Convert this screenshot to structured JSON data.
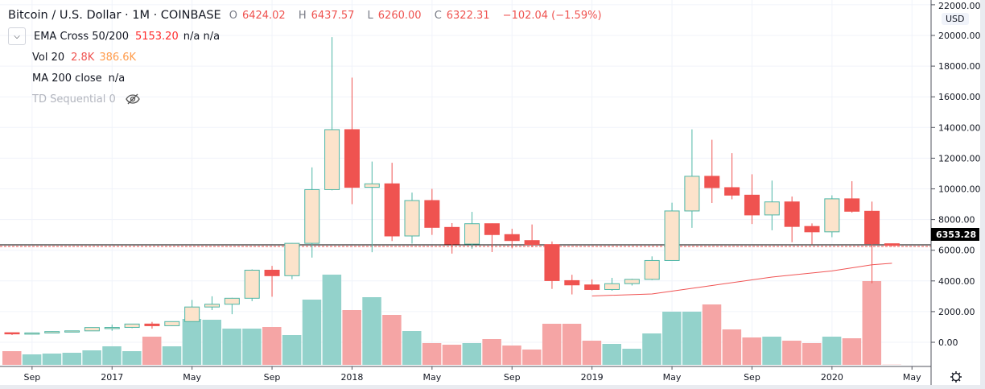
{
  "header": {
    "symbol": "Bitcoin / U.S. Dollar · 1M · COINBASE",
    "ohlc": {
      "o_label": "O",
      "o": "6424.02",
      "h_label": "H",
      "h": "6437.57",
      "l_label": "L",
      "l": "6260.00",
      "c_label": "C",
      "c": "6322.31",
      "change": "−102.04 (−1.59%)"
    }
  },
  "indicators": [
    {
      "name": "EMA Cross 50/200",
      "values": [
        "5153.20",
        "n/a n/a"
      ]
    },
    {
      "name": "Vol 20",
      "values": [
        "2.8K",
        "386.6K"
      ]
    },
    {
      "name": "MA 200 close",
      "values": [
        "n/a"
      ]
    },
    {
      "name": "TD Sequential 0",
      "hidden_icon": "eye-off-icon"
    }
  ],
  "price_axis": {
    "currency": "USD",
    "current_price": "6353.28"
  },
  "colors": {
    "up_fill": "#fce3cb",
    "up_border": "#4db6a6",
    "down": "#ef5350",
    "vol_up": "#93d2cb",
    "vol_down": "#f5a5a5",
    "ema": "#f05454"
  },
  "chart_data": {
    "type": "candlestick",
    "ylim": [
      0,
      22000
    ],
    "y_ticks": [
      "0.00",
      "2000.00",
      "4000.00",
      "6000.00",
      "8000.00",
      "10000.00",
      "12000.00",
      "14000.00",
      "16000.00",
      "18000.00",
      "20000.00",
      "22000.00"
    ],
    "x_tick_labels": [
      {
        "label": "Sep",
        "month": "2016-09"
      },
      {
        "label": "2017",
        "month": "2017-01"
      },
      {
        "label": "May",
        "month": "2017-05"
      },
      {
        "label": "Sep",
        "month": "2017-09"
      },
      {
        "label": "2018",
        "month": "2018-01"
      },
      {
        "label": "May",
        "month": "2018-05"
      },
      {
        "label": "Sep",
        "month": "2018-09"
      },
      {
        "label": "2019",
        "month": "2019-01"
      },
      {
        "label": "May",
        "month": "2019-05"
      },
      {
        "label": "Sep",
        "month": "2019-09"
      },
      {
        "label": "2020",
        "month": "2020-01"
      },
      {
        "label": "May",
        "month": "2020-05"
      }
    ],
    "months": [
      "2016-08",
      "2016-09",
      "2016-10",
      "2016-11",
      "2016-12",
      "2017-01",
      "2017-02",
      "2017-03",
      "2017-04",
      "2017-05",
      "2017-06",
      "2017-07",
      "2017-08",
      "2017-09",
      "2017-10",
      "2017-11",
      "2017-12",
      "2018-01",
      "2018-02",
      "2018-03",
      "2018-04",
      "2018-05",
      "2018-06",
      "2018-07",
      "2018-08",
      "2018-09",
      "2018-10",
      "2018-11",
      "2018-12",
      "2019-01",
      "2019-02",
      "2019-03",
      "2019-04",
      "2019-05",
      "2019-06",
      "2019-07",
      "2019-08",
      "2019-09",
      "2019-10",
      "2019-11",
      "2019-12",
      "2020-01",
      "2020-02",
      "2020-03",
      "2020-04"
    ],
    "ohlc": [
      [
        624,
        625,
        470,
        575
      ],
      [
        575,
        612,
        570,
        609
      ],
      [
        609,
        720,
        608,
        700
      ],
      [
        700,
        750,
        680,
        745
      ],
      [
        745,
        975,
        740,
        964
      ],
      [
        964,
        1150,
        750,
        970
      ],
      [
        970,
        1200,
        920,
        1190
      ],
      [
        1190,
        1330,
        890,
        1080
      ],
      [
        1080,
        1350,
        1060,
        1350
      ],
      [
        1350,
        2760,
        1350,
        2300
      ],
      [
        2300,
        3000,
        2100,
        2480
      ],
      [
        2480,
        2900,
        1830,
        2870
      ],
      [
        2870,
        4750,
        2680,
        4700
      ],
      [
        4700,
        4980,
        2970,
        4340
      ],
      [
        4340,
        6470,
        4110,
        6450
      ],
      [
        6450,
        11400,
        5520,
        9950
      ],
      [
        9950,
        19891,
        9900,
        13860
      ],
      [
        13860,
        17250,
        9000,
        10100
      ],
      [
        10100,
        11780,
        5870,
        10330
      ],
      [
        10330,
        11700,
        6600,
        6930
      ],
      [
        6930,
        9760,
        6430,
        9240
      ],
      [
        9240,
        10000,
        7000,
        7490
      ],
      [
        7490,
        7770,
        5780,
        6400
      ],
      [
        6400,
        8500,
        6100,
        7730
      ],
      [
        7730,
        7750,
        5880,
        7020
      ],
      [
        7020,
        7400,
        6120,
        6630
      ],
      [
        6630,
        7680,
        6200,
        6370
      ],
      [
        6370,
        6570,
        3480,
        4020
      ],
      [
        4020,
        4400,
        3120,
        3740
      ],
      [
        3740,
        4100,
        3380,
        3440
      ],
      [
        3440,
        4200,
        3360,
        3820
      ],
      [
        3820,
        4140,
        3700,
        4100
      ],
      [
        4100,
        5600,
        4050,
        5330
      ],
      [
        5330,
        9100,
        5330,
        8560
      ],
      [
        8560,
        13880,
        7460,
        10820
      ],
      [
        10820,
        13200,
        9080,
        10080
      ],
      [
        10080,
        12330,
        9320,
        9590
      ],
      [
        9590,
        10950,
        7710,
        8300
      ],
      [
        8300,
        10540,
        7300,
        9150
      ],
      [
        9150,
        9500,
        6520,
        7550
      ],
      [
        7550,
        7750,
        6400,
        7200
      ],
      [
        7200,
        9580,
        6850,
        9350
      ],
      [
        9350,
        10500,
        8450,
        8540
      ],
      [
        8540,
        9170,
        3850,
        6424
      ],
      [
        6424.02,
        6437.57,
        6260,
        6322.31
      ]
    ],
    "volume_k": [
      170,
      130,
      140,
      150,
      180,
      230,
      170,
      350,
      230,
      570,
      560,
      450,
      450,
      470,
      370,
      810,
      1120,
      680,
      840,
      620,
      420,
      270,
      250,
      270,
      320,
      240,
      190,
      510,
      510,
      300,
      260,
      200,
      390,
      660,
      660,
      750,
      440,
      340,
      350,
      300,
      270,
      350,
      330,
      1040,
      2.8
    ],
    "ema_line": [
      {
        "month": "2019-01",
        "value": 3020
      },
      {
        "month": "2019-04",
        "value": 3150
      },
      {
        "month": "2019-07",
        "value": 3700
      },
      {
        "month": "2019-10",
        "value": 4250
      },
      {
        "month": "2020-01",
        "value": 4650
      },
      {
        "month": "2020-03",
        "value": 5050
      },
      {
        "month": "2020-04",
        "value": 5153.2
      }
    ],
    "horizontal_line": 6353.28,
    "grid": true
  }
}
